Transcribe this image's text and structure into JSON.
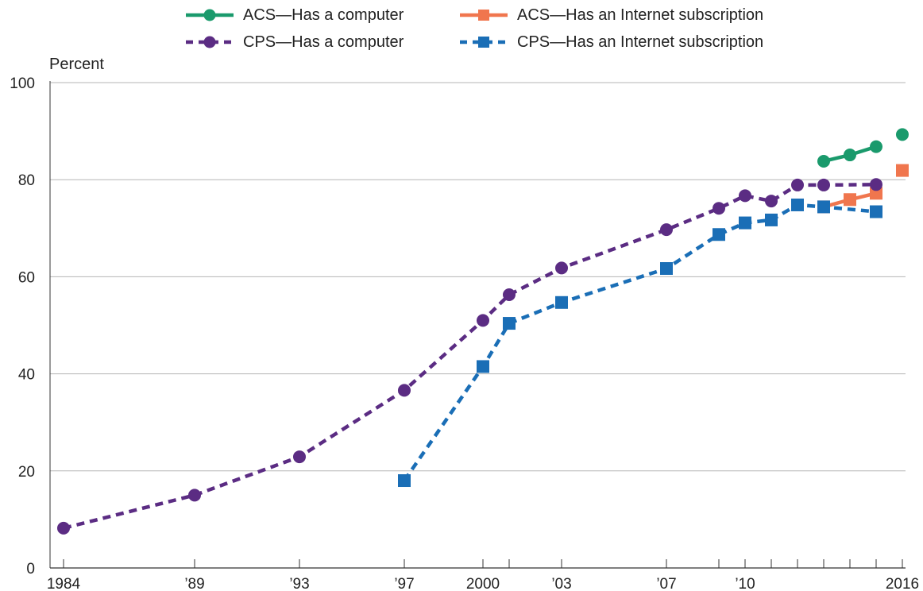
{
  "chart_data": {
    "type": "line",
    "ylabel": "Percent",
    "ylim": [
      0,
      100
    ],
    "yticks": [
      0,
      20,
      40,
      60,
      80,
      100
    ],
    "xlim": [
      1984,
      2016
    ],
    "xticks": [
      1984,
      1989,
      1993,
      1997,
      2000,
      2001,
      2003,
      2007,
      2009,
      2010,
      2011,
      2012,
      2013,
      2014,
      2015,
      2016
    ],
    "xtick_labels": {
      "1984": "1984",
      "1989": "’89",
      "1993": "’93",
      "1997": "’97",
      "2000": "2000",
      "2003": "’03",
      "2007": "’07",
      "2010": "’10",
      "2016": "2016"
    },
    "grid": "horizontal",
    "legend_position": "top",
    "series": [
      {
        "name": "ACS—Has a computer",
        "color": "#1a9a6c",
        "marker": "circle",
        "dash": false,
        "break_before_last": true,
        "x": [
          2013,
          2014,
          2015,
          2016
        ],
        "y": [
          83.8,
          85.1,
          86.8,
          89.3
        ]
      },
      {
        "name": "ACS—Has an Internet subscription",
        "color": "#f0764e",
        "marker": "square",
        "dash": false,
        "break_before_last": true,
        "x": [
          2013,
          2014,
          2015,
          2016
        ],
        "y": [
          74.4,
          75.9,
          77.2,
          81.9
        ]
      },
      {
        "name": "CPS—Has a computer",
        "color": "#5b2c83",
        "marker": "circle",
        "dash": true,
        "break_before_last": false,
        "x": [
          1984,
          1989,
          1993,
          1997,
          2000,
          2001,
          2003,
          2007,
          2009,
          2010,
          2011,
          2012,
          2013,
          2015
        ],
        "y": [
          8.2,
          15.0,
          22.9,
          36.6,
          51.0,
          56.3,
          61.8,
          69.7,
          74.1,
          76.7,
          75.6,
          78.9,
          78.9,
          79.0
        ]
      },
      {
        "name": "CPS—Has an Internet subscription",
        "color": "#1a6eb6",
        "marker": "square",
        "dash": true,
        "break_before_last": false,
        "x": [
          1997,
          2000,
          2001,
          2003,
          2007,
          2009,
          2010,
          2011,
          2012,
          2013,
          2015
        ],
        "y": [
          18.0,
          41.5,
          50.4,
          54.7,
          61.7,
          68.7,
          71.1,
          71.7,
          74.8,
          74.4,
          73.4
        ]
      }
    ]
  }
}
